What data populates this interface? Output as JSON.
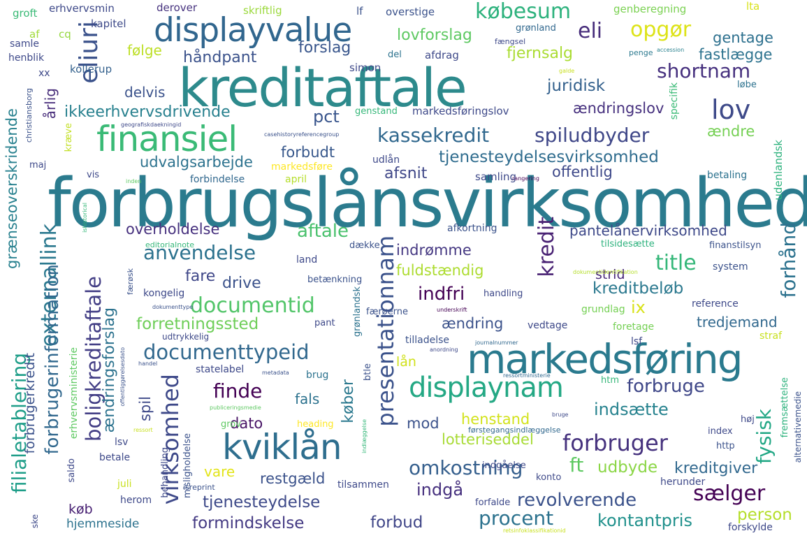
{
  "words": [
    {
      "text": "forbrugslånsvirksomhed",
      "color": "#2b7b8e"
    },
    {
      "text": "kreditaftale",
      "color": "#2d8a8c"
    },
    {
      "text": "markedsføring",
      "color": "#2a7a8e"
    },
    {
      "text": "displayvalue",
      "color": "#31668e"
    },
    {
      "text": "finansiel",
      "color": "#3aba76"
    },
    {
      "text": "kviklån",
      "color": "#2e6e8e"
    },
    {
      "text": "displaynam",
      "color": "#24a884"
    },
    {
      "text": "documentid",
      "color": "#52c569"
    },
    {
      "text": "presentationnam",
      "color": "#3b528b"
    },
    {
      "text": "forbruger",
      "color": "#46327e"
    },
    {
      "text": "kassekredit",
      "color": "#31688e"
    },
    {
      "text": "spiludbyder",
      "color": "#3f4788"
    },
    {
      "text": "lov",
      "color": "#3e4a89"
    },
    {
      "text": "eli",
      "color": "#472d7b"
    },
    {
      "text": "opgør",
      "color": "#dde318"
    },
    {
      "text": "købesum",
      "color": "#2db27d"
    },
    {
      "text": "eliuri",
      "color": "#3b528b"
    },
    {
      "text": "externallink",
      "color": "#2a788e"
    },
    {
      "text": "boligkreditaftale",
      "color": "#433e85"
    },
    {
      "text": "forbrugerinformation",
      "color": "#31688e"
    },
    {
      "text": "filialetablering",
      "color": "#1f9e89"
    },
    {
      "text": "virksomhed",
      "color": "#3e4989"
    },
    {
      "text": "kredit",
      "color": "#482173"
    },
    {
      "text": "forhånd",
      "color": "#2c728e"
    },
    {
      "text": "fysisk",
      "color": "#22a785"
    },
    {
      "text": "documenttypeid",
      "color": "#31688e"
    },
    {
      "text": "forbruge",
      "color": "#3f4788"
    },
    {
      "text": "finde",
      "color": "#440154"
    },
    {
      "text": "omkostning",
      "color": "#355f8d"
    },
    {
      "text": "revolverende",
      "color": "#3b528b"
    },
    {
      "text": "sælger",
      "color": "#440154"
    },
    {
      "text": "procent",
      "color": "#2c728e"
    },
    {
      "text": "tjenesteydelse",
      "color": "#3e4a89"
    },
    {
      "text": "formindskelse",
      "color": "#443a83"
    },
    {
      "text": "forbud",
      "color": "#404688"
    },
    {
      "text": "kontantpris",
      "color": "#21918c"
    },
    {
      "text": "person",
      "color": "#b5de2b"
    },
    {
      "text": "tjenesteydelsesvirksomhed",
      "color": "#2f6c8e"
    },
    {
      "text": "shortnam",
      "color": "#46307e"
    },
    {
      "text": "juridisk",
      "color": "#34618d"
    },
    {
      "text": "ændringslov",
      "color": "#46307e"
    },
    {
      "text": "ændre",
      "color": "#75d054"
    },
    {
      "text": "lovforslag",
      "color": "#5ec962"
    },
    {
      "text": "forslag",
      "color": "#39568c"
    },
    {
      "text": "følge",
      "color": "#bddf26"
    },
    {
      "text": "håndpant",
      "color": "#3b528b"
    },
    {
      "text": "delvis",
      "color": "#3b528b"
    },
    {
      "text": "ikkeerhvervsdrivende",
      "color": "#27808e"
    },
    {
      "text": "pct",
      "color": "#39558c"
    },
    {
      "text": "forbudt",
      "color": "#38588c"
    },
    {
      "text": "udvalgsarbejde",
      "color": "#2c728e"
    },
    {
      "text": "afsnit",
      "color": "#3f4788"
    },
    {
      "text": "offentlig",
      "color": "#3e4989"
    },
    {
      "text": "aftale",
      "color": "#4ac16d"
    },
    {
      "text": "anvendelse",
      "color": "#2c728e"
    },
    {
      "text": "overholdelse",
      "color": "#46307e"
    },
    {
      "text": "pantelånervirksomhed",
      "color": "#3e4989"
    },
    {
      "text": "indrømme",
      "color": "#453882"
    },
    {
      "text": "fuldstændig",
      "color": "#addc30"
    },
    {
      "text": "title",
      "color": "#35b779"
    },
    {
      "text": "strid",
      "color": "#482878"
    },
    {
      "text": "kreditbeløb",
      "color": "#2a788e"
    },
    {
      "text": "indfri",
      "color": "#440154"
    },
    {
      "text": "ix",
      "color": "#d8e219"
    },
    {
      "text": "ændring",
      "color": "#3b528b"
    },
    {
      "text": "tredjemand",
      "color": "#31688e"
    },
    {
      "text": "fare",
      "color": "#3f4788"
    },
    {
      "text": "drive",
      "color": "#3b528b"
    },
    {
      "text": "forretningssted",
      "color": "#6ece58"
    },
    {
      "text": "gentage",
      "color": "#2d708e"
    },
    {
      "text": "fastlægge",
      "color": "#2c728e"
    },
    {
      "text": "fjernsalg",
      "color": "#aadc32"
    },
    {
      "text": "køber",
      "color": "#2a788e"
    },
    {
      "text": "fals",
      "color": "#2c728e"
    },
    {
      "text": "spil",
      "color": "#3e4989"
    },
    {
      "text": "dato",
      "color": "#471365"
    },
    {
      "text": "mod",
      "color": "#3b528b"
    },
    {
      "text": "henstand",
      "color": "#d2e21b"
    },
    {
      "text": "indsætte",
      "color": "#26828e"
    },
    {
      "text": "lotteriseddel",
      "color": "#a8db34"
    },
    {
      "text": "ft",
      "color": "#5ec962"
    },
    {
      "text": "udbyde",
      "color": "#8bd646"
    },
    {
      "text": "kreditgiver",
      "color": "#31688e"
    },
    {
      "text": "vare",
      "color": "#e2e418"
    },
    {
      "text": "restgæld",
      "color": "#3b528b"
    },
    {
      "text": "indgå",
      "color": "#46307e"
    },
    {
      "text": "køb",
      "color": "#482173"
    },
    {
      "text": "hjemmeside",
      "color": "#2c728e"
    },
    {
      "text": "lån",
      "color": "#d0e11c"
    },
    {
      "text": "grænseoverskridende",
      "color": "#27808e"
    },
    {
      "text": "forbrugerkredit",
      "color": "#3b528b"
    },
    {
      "text": "ændringsforslag",
      "color": "#2c728e"
    },
    {
      "text": "årlig",
      "color": "#472c7a"
    },
    {
      "text": "erhvervsmin",
      "color": "#3e4989"
    },
    {
      "text": "derover",
      "color": "#46327e"
    },
    {
      "text": "skriftlig",
      "color": "#9bd93c"
    },
    {
      "text": "lf",
      "color": "#3b528b"
    },
    {
      "text": "overstige",
      "color": "#3b528b"
    },
    {
      "text": "genberegning",
      "color": "#7ad151"
    },
    {
      "text": "lta",
      "color": "#d8e219"
    },
    {
      "text": "groft",
      "color": "#3aba76"
    },
    {
      "text": "kapitel",
      "color": "#3e4a89"
    },
    {
      "text": "grønland",
      "color": "#31688e"
    },
    {
      "text": "fængsel",
      "color": "#3e4989"
    },
    {
      "text": "accession",
      "color": "#27808e"
    },
    {
      "text": "af",
      "color": "#a0da39"
    },
    {
      "text": "cq",
      "color": "#95d840"
    },
    {
      "text": "samle",
      "color": "#3e4989"
    },
    {
      "text": "henblik",
      "color": "#3e4989"
    },
    {
      "text": "del",
      "color": "#2c728e"
    },
    {
      "text": "afdrag",
      "color": "#3e4989"
    },
    {
      "text": "penge",
      "color": "#2a788e"
    },
    {
      "text": "kollerup",
      "color": "#34618d"
    },
    {
      "text": "simon",
      "color": "#3e4989"
    },
    {
      "text": "xx",
      "color": "#3e4989"
    },
    {
      "text": "galde",
      "color": "#c8e020"
    },
    {
      "text": "løbe",
      "color": "#2c728e"
    },
    {
      "text": "genstand",
      "color": "#35b779"
    },
    {
      "text": "markedsføringslov",
      "color": "#3e4989"
    },
    {
      "text": "specifik",
      "color": "#3aba76"
    },
    {
      "text": "udenlandsk",
      "color": "#2db27d"
    },
    {
      "text": "udlån",
      "color": "#3e4989"
    },
    {
      "text": "markedsføre",
      "color": "#fde725"
    },
    {
      "text": "samling",
      "color": "#3e4989"
    },
    {
      "text": "betaling",
      "color": "#2c728e"
    },
    {
      "text": "forbindelse",
      "color": "#31688e"
    },
    {
      "text": "april",
      "color": "#b5de2b"
    },
    {
      "text": "vis",
      "color": "#3e4989"
    },
    {
      "text": "maj",
      "color": "#3e4989"
    },
    {
      "text": "kræve",
      "color": "#c2df23"
    },
    {
      "text": "christiansborg",
      "color": "#3b528b"
    },
    {
      "text": "rangering",
      "color": "#440154"
    },
    {
      "text": "inden",
      "color": "#5ec962"
    },
    {
      "text": "afkortning",
      "color": "#3b528b"
    },
    {
      "text": "editorialnote",
      "color": "#35b779"
    },
    {
      "text": "dække",
      "color": "#3b528b"
    },
    {
      "text": "land",
      "color": "#3e4989"
    },
    {
      "text": "betænkning",
      "color": "#3b528b"
    },
    {
      "text": "handling",
      "color": "#3e4989"
    },
    {
      "text": "grundlag",
      "color": "#75d054"
    },
    {
      "text": "reference",
      "color": "#3e4989"
    },
    {
      "text": "system",
      "color": "#3b528b"
    },
    {
      "text": "finanstilsyn",
      "color": "#3b528b"
    },
    {
      "text": "tilsidesætte",
      "color": "#2db27d"
    },
    {
      "text": "dokumentidentifikation",
      "color": "#b5de2b"
    },
    {
      "text": "kongelig",
      "color": "#3e4989"
    },
    {
      "text": "pant",
      "color": "#3e4989"
    },
    {
      "text": "vedtage",
      "color": "#3e4989"
    },
    {
      "text": "foretage",
      "color": "#75d054"
    },
    {
      "text": "straf",
      "color": "#c8e020"
    },
    {
      "text": "lsf",
      "color": "#3e4989"
    },
    {
      "text": "tilladelse",
      "color": "#3b528b"
    },
    {
      "text": "journalnummer",
      "color": "#31688e"
    },
    {
      "text": "underskrift",
      "color": "#440154"
    },
    {
      "text": "anordning",
      "color": "#3e4989"
    },
    {
      "text": "udtrykkelig",
      "color": "#3e4989"
    },
    {
      "text": "færøsk",
      "color": "#3b528b"
    },
    {
      "text": "dokumenttype",
      "color": "#3b528b"
    },
    {
      "text": "færøerne",
      "color": "#3b528b"
    },
    {
      "text": "grønlandsk",
      "color": "#2c728e"
    },
    {
      "text": "erhvervsministerie",
      "color": "#5ec962"
    },
    {
      "text": "offentliggørelsesdato",
      "color": "#3b528b"
    },
    {
      "text": "handel",
      "color": "#3b528b"
    },
    {
      "text": "statelabel",
      "color": "#3e4989"
    },
    {
      "text": "metadata",
      "color": "#3b528b"
    },
    {
      "text": "brug",
      "color": "#2c728e"
    },
    {
      "text": "btle",
      "color": "#3b528b"
    },
    {
      "text": "ressortministerie",
      "color": "#31688e"
    },
    {
      "text": "htm",
      "color": "#35b779"
    },
    {
      "text": "misligholdelse",
      "color": "#3b528b"
    },
    {
      "text": "publiceringsmedie",
      "color": "#5ec962"
    },
    {
      "text": "behandling",
      "color": "#3e4989"
    },
    {
      "text": "grov",
      "color": "#5ec962"
    },
    {
      "text": "heading",
      "color": "#fde725"
    },
    {
      "text": "ressort",
      "color": "#c8e020"
    },
    {
      "text": "lsv",
      "color": "#3e4989"
    },
    {
      "text": "førstegangsindlæggelse",
      "color": "#31688e"
    },
    {
      "text": "bruge",
      "color": "#3e4989"
    },
    {
      "text": "indlæggelse",
      "color": "#35b779"
    },
    {
      "text": "fremsættelse",
      "color": "#2db27d"
    },
    {
      "text": "alternativemedie",
      "color": "#3b528b"
    },
    {
      "text": "index",
      "color": "#3e4989"
    },
    {
      "text": "høj",
      "color": "#3e4989"
    },
    {
      "text": "http",
      "color": "#3b528b"
    },
    {
      "text": "indgåelse",
      "color": "#3e4989"
    },
    {
      "text": "konto",
      "color": "#3e4989"
    },
    {
      "text": "herunder",
      "color": "#3e4989"
    },
    {
      "text": "tilsammen",
      "color": "#3e4989"
    },
    {
      "text": "isreprint",
      "color": "#3b528b"
    },
    {
      "text": "forfalde",
      "color": "#3e4989"
    },
    {
      "text": "herom",
      "color": "#3e4989"
    },
    {
      "text": "juli",
      "color": "#c8e020"
    },
    {
      "text": "betale",
      "color": "#3e4989"
    },
    {
      "text": "saldo",
      "color": "#3e4989"
    },
    {
      "text": "ske",
      "color": "#3e4989"
    },
    {
      "text": "retsinfoklassifikationid",
      "color": "#c8e020"
    },
    {
      "text": "forskylde",
      "color": "#3e4989"
    },
    {
      "text": "geografiskdaekningid",
      "color": "#3e4989"
    },
    {
      "text": "casehistoryreferencegroup",
      "color": "#3b528b"
    },
    {
      "text": "ishistorical",
      "color": "#35b779"
    }
  ]
}
